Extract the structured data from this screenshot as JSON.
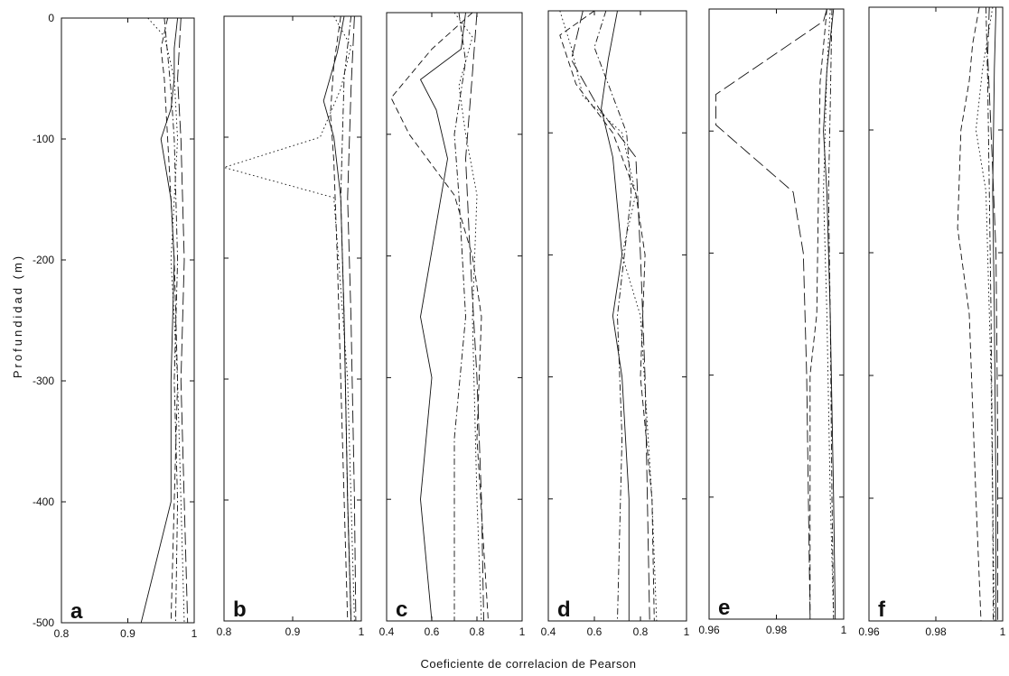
{
  "chart_data": {
    "type": "line",
    "xlabel": "Coeficiente de correlacion de Pearson",
    "ylabel": "Profundidad (m)",
    "ylim": [
      -500,
      0
    ],
    "yticks": [
      0,
      -100,
      -200,
      -300,
      -400,
      -500
    ],
    "line_styles": [
      "solid",
      "dashed",
      "dotted",
      "dashdot",
      "longdash"
    ],
    "ink_color": "#111111",
    "panels": [
      {
        "label": "a",
        "xlim": [
          0.8,
          1.0
        ],
        "xticks": [
          0.8,
          0.9,
          1
        ],
        "xtick_labels": [
          "0.8",
          "0.9",
          "1"
        ],
        "series": [
          {
            "style": "solid",
            "x": [
              0.975,
              0.97,
              0.97,
              0.965,
              0.95,
              0.965,
              0.97,
              0.965,
              0.965,
              0.92
            ],
            "y": [
              0,
              -25,
              -50,
              -75,
              -100,
              -150,
              -200,
              -300,
              -400,
              -500
            ]
          },
          {
            "style": "dashed",
            "x": [
              0.96,
              0.95,
              0.955,
              0.96,
              0.965,
              0.97,
              0.975,
              0.97,
              0.965
            ],
            "y": [
              0,
              -25,
              -50,
              -100,
              -150,
              -200,
              -300,
              -400,
              -500
            ]
          },
          {
            "style": "dotted",
            "x": [
              0.93,
              0.955,
              0.97,
              0.975,
              0.97,
              0.965,
              0.975,
              0.98,
              0.985
            ],
            "y": [
              0,
              -15,
              -50,
              -100,
              -150,
              -200,
              -300,
              -400,
              -500
            ]
          },
          {
            "style": "dashdot",
            "x": [
              0.955,
              0.96,
              0.965,
              0.97,
              0.975,
              0.97,
              0.975,
              0.972
            ],
            "y": [
              0,
              -30,
              -60,
              -100,
              -200,
              -300,
              -400,
              -500
            ]
          },
          {
            "style": "longdash",
            "x": [
              0.98,
              0.975,
              0.98,
              0.985,
              0.98,
              0.985,
              0.99
            ],
            "y": [
              0,
              -50,
              -100,
              -200,
              -300,
              -400,
              -500
            ]
          }
        ]
      },
      {
        "label": "b",
        "xlim": [
          0.8,
          1.0
        ],
        "xticks": [
          0.8,
          0.9,
          1
        ],
        "xtick_labels": [
          "0.8",
          "0.9",
          "1"
        ],
        "series": [
          {
            "style": "solid",
            "x": [
              0.975,
              0.965,
              0.945,
              0.96,
              0.97,
              0.975,
              0.98,
              0.985
            ],
            "y": [
              0,
              -30,
              -70,
              -100,
              -150,
              -250,
              -400,
              -500
            ]
          },
          {
            "style": "dashed",
            "x": [
              0.97,
              0.96,
              0.955,
              0.96,
              0.965,
              0.97,
              0.975,
              0.98
            ],
            "y": [
              0,
              -40,
              -80,
              -120,
              -200,
              -300,
              -400,
              -500
            ]
          },
          {
            "style": "dotted",
            "x": [
              0.96,
              0.985,
              0.97,
              0.94,
              0.8,
              0.96,
              0.98,
              0.99
            ],
            "y": [
              0,
              -25,
              -60,
              -100,
              -125,
              -150,
              -300,
              -500
            ]
          },
          {
            "style": "dashdot",
            "x": [
              0.985,
              0.975,
              0.97,
              0.975,
              0.98,
              0.985
            ],
            "y": [
              0,
              -50,
              -150,
              -250,
              -400,
              -500
            ]
          },
          {
            "style": "longdash",
            "x": [
              0.99,
              0.985,
              0.98,
              0.985,
              0.99,
              0.992
            ],
            "y": [
              0,
              -60,
              -150,
              -250,
              -400,
              -500
            ]
          }
        ]
      },
      {
        "label": "c",
        "xlim": [
          0.4,
          1.0
        ],
        "xticks": [
          0.4,
          0.6,
          0.8,
          1
        ],
        "xtick_labels": [
          "0.4",
          "0.6",
          "0.8",
          "1"
        ],
        "series": [
          {
            "style": "solid",
            "x": [
              0.75,
              0.73,
              0.55,
              0.62,
              0.67,
              0.55,
              0.6,
              0.55,
              0.6
            ],
            "y": [
              0,
              -30,
              -55,
              -80,
              -120,
              -250,
              -300,
              -400,
              -500
            ]
          },
          {
            "style": "dashed",
            "x": [
              0.78,
              0.6,
              0.42,
              0.5,
              0.7,
              0.78,
              0.82,
              0.8,
              0.85
            ],
            "y": [
              0,
              -30,
              -70,
              -100,
              -150,
              -200,
              -250,
              -350,
              -500
            ]
          },
          {
            "style": "dotted",
            "x": [
              0.7,
              0.78,
              0.72,
              0.75,
              0.8,
              0.78,
              0.8,
              0.82
            ],
            "y": [
              0,
              -20,
              -60,
              -100,
              -150,
              -250,
              -400,
              -500
            ]
          },
          {
            "style": "dashdot",
            "x": [
              0.72,
              0.75,
              0.7,
              0.72,
              0.75,
              0.7,
              0.7
            ],
            "y": [
              0,
              -40,
              -100,
              -150,
              -250,
              -350,
              -500
            ]
          },
          {
            "style": "longdash",
            "x": [
              0.8,
              0.78,
              0.75,
              0.77,
              0.8,
              0.82,
              0.83
            ],
            "y": [
              0,
              -50,
              -120,
              -200,
              -300,
              -400,
              -500
            ]
          }
        ]
      },
      {
        "label": "d",
        "xlim": [
          0.4,
          1.0
        ],
        "xticks": [
          0.4,
          0.6,
          0.8,
          1
        ],
        "xtick_labels": [
          "0.4",
          "0.6",
          "0.8",
          "1"
        ],
        "series": [
          {
            "style": "solid",
            "x": [
              0.7,
              0.66,
              0.63,
              0.68,
              0.72,
              0.68,
              0.72,
              0.75,
              0.75
            ],
            "y": [
              0,
              -40,
              -80,
              -120,
              -200,
              -250,
              -300,
              -400,
              -500
            ]
          },
          {
            "style": "dashed",
            "x": [
              0.6,
              0.45,
              0.52,
              0.68,
              0.78,
              0.82,
              0.8,
              0.85,
              0.86
            ],
            "y": [
              0,
              -20,
              -60,
              -100,
              -150,
              -200,
              -300,
              -400,
              -500
            ]
          },
          {
            "style": "dotted",
            "x": [
              0.45,
              0.5,
              0.55,
              0.72,
              0.78,
              0.72,
              0.8,
              0.85,
              0.87
            ],
            "y": [
              0,
              -30,
              -70,
              -100,
              -150,
              -200,
              -250,
              -400,
              -500
            ]
          },
          {
            "style": "dashdot",
            "x": [
              0.65,
              0.6,
              0.68,
              0.74,
              0.76,
              0.7,
              0.72,
              0.7
            ],
            "y": [
              0,
              -30,
              -70,
              -100,
              -150,
              -250,
              -350,
              -500
            ]
          },
          {
            "style": "longdash",
            "x": [
              0.55,
              0.5,
              0.62,
              0.78,
              0.8,
              0.82,
              0.84
            ],
            "y": [
              0,
              -40,
              -80,
              -120,
              -200,
              -300,
              -500
            ]
          }
        ]
      },
      {
        "label": "e",
        "xlim": [
          0.96,
          1.0
        ],
        "xticks": [
          0.96,
          0.98,
          1
        ],
        "xtick_labels": [
          "0.96",
          "0.98",
          "1"
        ],
        "series": [
          {
            "style": "solid",
            "x": [
              0.997,
              0.995,
              0.994,
              0.995,
              0.996,
              0.997,
              0.9975
            ],
            "y": [
              0,
              -50,
              -100,
              -150,
              -250,
              -400,
              -500
            ]
          },
          {
            "style": "dashed",
            "x": [
              0.995,
              0.993,
              0.9925,
              0.992,
              0.99,
              0.99
            ],
            "y": [
              0,
              -60,
              -150,
              -250,
              -300,
              -500
            ]
          },
          {
            "style": "dotted",
            "x": [
              0.996,
              0.995,
              0.994,
              0.995,
              0.996,
              0.997
            ],
            "y": [
              0,
              -50,
              -150,
              -250,
              -400,
              -500
            ]
          },
          {
            "style": "dashdot",
            "x": [
              0.9965,
              0.996,
              0.9955,
              0.996,
              0.9965,
              0.997
            ],
            "y": [
              0,
              -80,
              -150,
              -250,
              -400,
              -500
            ]
          },
          {
            "style": "longdash",
            "x": [
              0.995,
              0.994,
              0.962,
              0.962,
              0.985,
              0.988,
              0.989,
              0.99
            ],
            "y": [
              0,
              -10,
              -70,
              -95,
              -150,
              -200,
              -300,
              -500
            ]
          }
        ]
      },
      {
        "label": "f",
        "xlim": [
          0.96,
          1.0
        ],
        "xticks": [
          0.96,
          0.98,
          1
        ],
        "xtick_labels": [
          "0.96",
          "0.98",
          "1"
        ],
        "series": [
          {
            "style": "solid",
            "x": [
              0.998,
              0.9975,
              0.997,
              0.9975,
              0.998,
              0.998
            ],
            "y": [
              0,
              -50,
              -150,
              -250,
              -400,
              -500
            ]
          },
          {
            "style": "dashed",
            "x": [
              0.993,
              0.991,
              0.99,
              0.9875,
              0.9865,
              0.99,
              0.992,
              0.9935
            ],
            "y": [
              0,
              -30,
              -60,
              -100,
              -180,
              -250,
              -400,
              -500
            ]
          },
          {
            "style": "dotted",
            "x": [
              0.997,
              0.994,
              0.992,
              0.995,
              0.9965,
              0.9975
            ],
            "y": [
              0,
              -50,
              -100,
              -150,
              -300,
              -500
            ]
          },
          {
            "style": "dashdot",
            "x": [
              0.995,
              0.9955,
              0.996,
              0.9965,
              0.997,
              0.9972
            ],
            "y": [
              0,
              -60,
              -150,
              -250,
              -400,
              -500
            ]
          },
          {
            "style": "longdash",
            "x": [
              0.996,
              0.9955,
              0.9965,
              0.998,
              0.9985,
              0.9985
            ],
            "y": [
              0,
              -40,
              -100,
              -200,
              -350,
              -500
            ]
          }
        ]
      }
    ]
  }
}
